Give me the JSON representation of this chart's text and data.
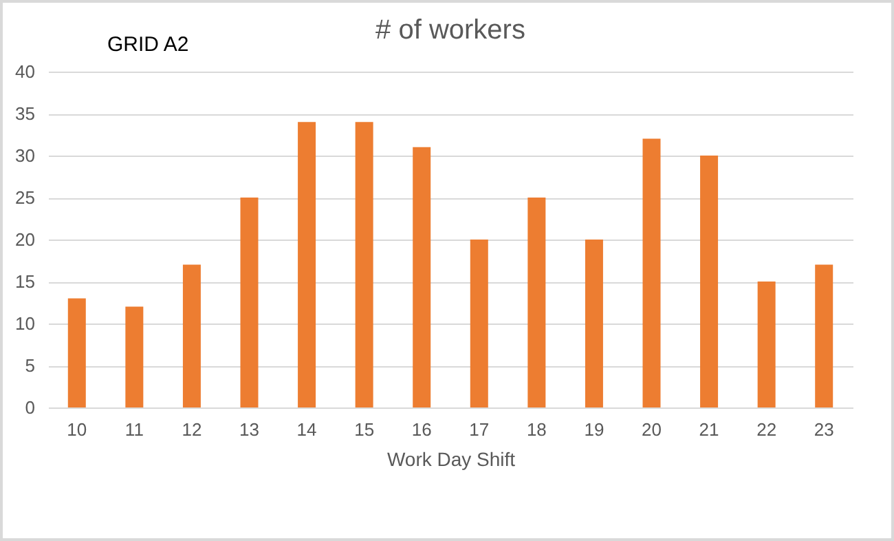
{
  "chart_data": {
    "type": "bar",
    "title": "# of workers",
    "xlabel": "Work Day Shift",
    "annotations": [
      "GRID A2"
    ],
    "categories": [
      "10",
      "11",
      "12",
      "13",
      "14",
      "15",
      "16",
      "17",
      "18",
      "19",
      "20",
      "21",
      "22",
      "23"
    ],
    "values": [
      13,
      12,
      17,
      25,
      34,
      34,
      31,
      20,
      25,
      20,
      32,
      30,
      15,
      17
    ],
    "color": "#ed7d31",
    "ylim": [
      0,
      40
    ],
    "yticks": [
      0,
      5,
      10,
      15,
      20,
      25,
      30,
      35,
      40
    ],
    "grid": "y"
  }
}
